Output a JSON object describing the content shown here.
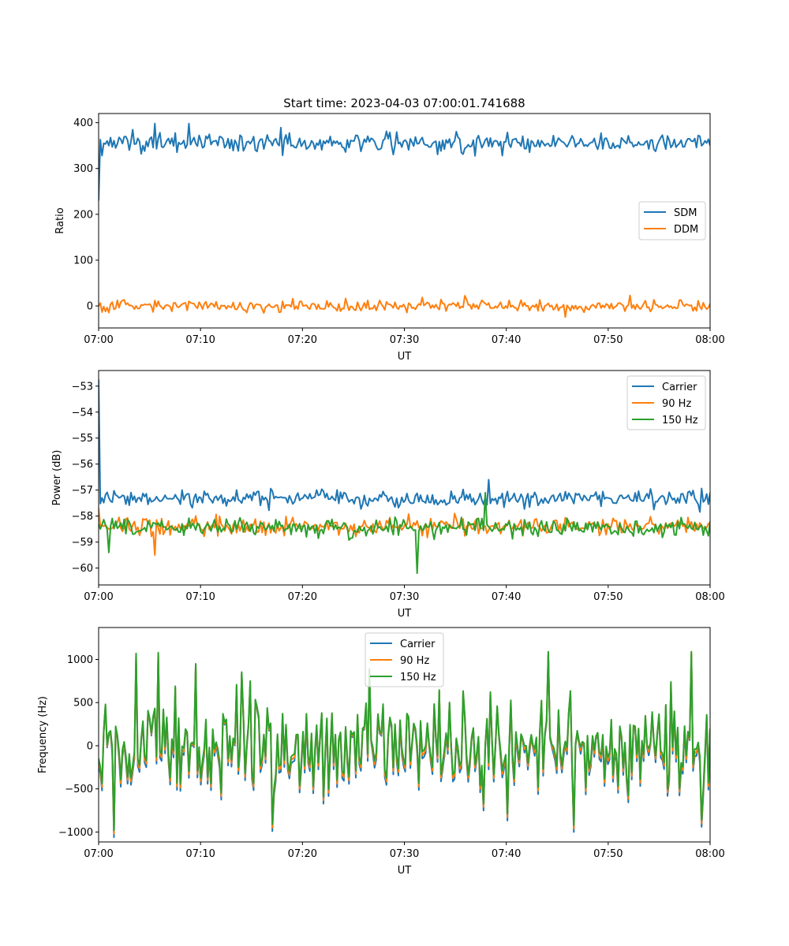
{
  "figure": {
    "title": "Start time: 2023-04-03 07:00:01.741688"
  },
  "colors": {
    "blue": "#1f77b4",
    "orange": "#ff7f0e",
    "green": "#2ca02c"
  },
  "chart_data": [
    {
      "type": "line",
      "title": "Start time: 2023-04-03 07:00:01.741688",
      "xlabel": "UT",
      "ylabel": "Ratio",
      "xlim": [
        "07:00",
        "08:00"
      ],
      "ylim": [
        -48,
        420
      ],
      "xticks": [
        "07:00",
        "07:10",
        "07:20",
        "07:30",
        "07:40",
        "07:50",
        "08:00"
      ],
      "yticks": [
        0,
        100,
        200,
        300,
        400
      ],
      "legend": "center-right",
      "noise_note": "Both series fluctuate rapidly around their baselines; 360 samples over one hour.",
      "series": [
        {
          "name": "SDM",
          "color": "#1f77b4",
          "x_minutes": [
            0,
            0.5,
            1,
            5.5,
            8.9,
            15,
            20,
            25,
            30,
            35,
            40,
            45,
            50,
            55,
            60
          ],
          "values": [
            230,
            355,
            350,
            398,
            398,
            360,
            355,
            360,
            362,
            360,
            358,
            358,
            358,
            360,
            350
          ],
          "baseline": 356,
          "amplitude": 20
        },
        {
          "name": "DDM",
          "color": "#ff7f0e",
          "x_minutes": [
            0,
            10,
            20,
            30,
            40,
            50,
            60
          ],
          "values": [
            0,
            2,
            0,
            -3,
            0,
            2,
            5
          ],
          "baseline": 0,
          "amplitude": 12
        }
      ]
    },
    {
      "type": "line",
      "title": "",
      "xlabel": "UT",
      "ylabel": "Power (dB)",
      "xlim": [
        "07:00",
        "08:00"
      ],
      "ylim": [
        -60.65,
        -52.4
      ],
      "xticks": [
        "07:00",
        "07:10",
        "07:20",
        "07:30",
        "07:40",
        "07:50",
        "08:00"
      ],
      "yticks": [
        -53,
        -54,
        -55,
        -56,
        -57,
        -58,
        -59,
        -60
      ],
      "legend": "top-right",
      "series": [
        {
          "name": "Carrier",
          "color": "#1f77b4",
          "x_minutes": [
            0,
            0.3,
            1,
            10,
            20,
            30,
            38.3,
            40,
            50,
            60
          ],
          "values": [
            -52.75,
            -57.3,
            -57.3,
            -57.3,
            -57.3,
            -57.4,
            -56.6,
            -57.3,
            -57.3,
            -57.1
          ],
          "baseline": -57.35,
          "amplitude": 0.28
        },
        {
          "name": "90 Hz",
          "color": "#ff7f0e",
          "x_minutes": [
            0,
            5.5,
            10,
            20,
            30,
            35,
            40,
            50,
            60
          ],
          "values": [
            -57.7,
            -59.5,
            -58.5,
            -58.4,
            -58.3,
            -57.9,
            -58.4,
            -58.3,
            -58.3
          ],
          "baseline": -58.4,
          "amplitude": 0.3
        },
        {
          "name": "150 Hz",
          "color": "#2ca02c",
          "x_minutes": [
            0,
            1,
            10,
            20,
            30,
            31.2,
            32,
            38,
            40,
            50,
            60
          ],
          "values": [
            -58.3,
            -59.4,
            -58.6,
            -58.4,
            -58.3,
            -60.2,
            -58.5,
            -57.1,
            -58.3,
            -58.4,
            -58.2
          ],
          "baseline": -58.45,
          "amplitude": 0.3
        }
      ]
    },
    {
      "type": "line",
      "title": "",
      "xlabel": "UT",
      "ylabel": "Frequency (Hz)",
      "xlim": [
        "07:00",
        "08:00"
      ],
      "ylim": [
        -1115,
        1370
      ],
      "xticks": [
        "07:00",
        "07:10",
        "07:20",
        "07:30",
        "07:40",
        "07:50",
        "08:00"
      ],
      "yticks": [
        1000,
        500,
        0,
        -500,
        -1000
      ],
      "legend": "top-center",
      "series": [
        {
          "name": "Carrier",
          "color": "#1f77b4",
          "offset_from_150Hz": -50,
          "baseline": 0,
          "amplitude": 500
        },
        {
          "name": "90 Hz",
          "color": "#ff7f0e",
          "offset_from_150Hz": -25,
          "baseline": 0,
          "amplitude": 500
        },
        {
          "name": "150 Hz",
          "color": "#2ca02c",
          "x_minutes": [
            0,
            0.7,
            1.5,
            3.7,
            5.9,
            6.7,
            9.5,
            17.1,
            26.5,
            44.2,
            46.6,
            56.2,
            58.2,
            59.2,
            60
          ],
          "values": [
            -150,
            480,
            -980,
            1070,
            1080,
            330,
            950,
            -910,
            890,
            1090,
            -920,
            740,
            1090,
            -860,
            200
          ],
          "baseline": 0,
          "amplitude": 480
        }
      ]
    }
  ]
}
